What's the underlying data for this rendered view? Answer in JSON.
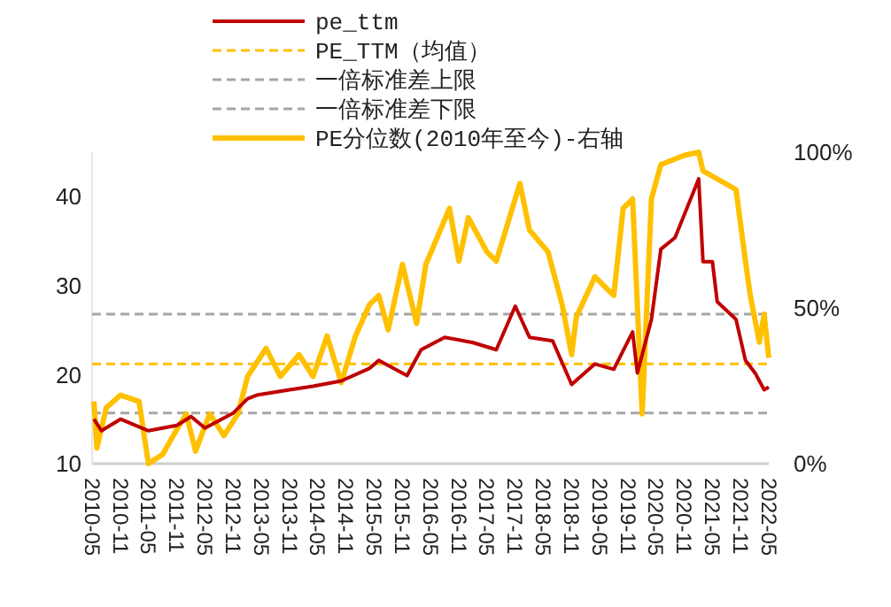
{
  "chart_data": {
    "type": "line",
    "legend": "top",
    "line_style": "solid",
    "marker": "none",
    "grid": false,
    "xlim": [
      "2010-05",
      "2022-05"
    ],
    "xticks": [
      "2010-05",
      "2010-11",
      "2011-05",
      "2011-11",
      "2012-05",
      "2012-11",
      "2013-05",
      "2013-11",
      "2014-05",
      "2014-11",
      "2015-05",
      "2015-11",
      "2016-05",
      "2016-11",
      "2017-05",
      "2017-11",
      "2018-05",
      "2018-11",
      "2019-05",
      "2019-11",
      "2020-05",
      "2020-11",
      "2021-05",
      "2021-11",
      "2022-05"
    ],
    "ylim": [
      10,
      45
    ],
    "yticks": [
      10,
      20,
      30,
      40
    ],
    "y2lim": [
      0,
      100
    ],
    "y2ticks": [
      {
        "value": 0,
        "label": "0%"
      },
      {
        "value": 50,
        "label": "50%"
      },
      {
        "value": 100,
        "label": "100%"
      }
    ],
    "ref_lines": [
      {
        "axis": "y",
        "value": 21.2,
        "label": "PE_TTM（均值）",
        "color": "#ffc000",
        "line_style": "dashed"
      },
      {
        "axis": "y",
        "value": 26.8,
        "label": "一倍标准差上限",
        "color": "#a6a6a6",
        "line_style": "dashed"
      },
      {
        "axis": "y",
        "value": 15.7,
        "label": "一倍标准差下限",
        "color": "#a6a6a6",
        "line_style": "dashed"
      }
    ],
    "series": [
      {
        "name": "pe_ttm",
        "color": "#c00000",
        "x": [
          "2010-05-13",
          "2010-07",
          "2010-11",
          "2011-05",
          "2011-11",
          "2012-02",
          "2012-05",
          "2012-11",
          "2013-02",
          "2013-04",
          "2013-11",
          "2014-04",
          "2014-10",
          "2015-04",
          "2015-06",
          "2015-12",
          "2016-03",
          "2016-08",
          "2017-02",
          "2017-07",
          "2017-11",
          "2018-02",
          "2018-07",
          "2018-11",
          "2019-04",
          "2019-08",
          "2019-12",
          "2020-01",
          "2020-04",
          "2020-06",
          "2020-09",
          "2021-02",
          "2021-03",
          "2021-05",
          "2021-06",
          "2021-10",
          "2021-12",
          "2022-02",
          "2022-04",
          "2022-05"
        ],
        "values": [
          15.0,
          13.7,
          15.0,
          13.7,
          14.3,
          15.3,
          14.0,
          15.7,
          17.3,
          17.7,
          18.3,
          18.7,
          19.3,
          20.7,
          21.6,
          19.9,
          22.8,
          24.2,
          23.6,
          22.8,
          27.7,
          24.2,
          23.8,
          18.9,
          21.2,
          20.6,
          24.8,
          20.2,
          26.2,
          34.1,
          35.4,
          42.0,
          32.7,
          32.7,
          28.2,
          26.2,
          21.6,
          20.2,
          18.3,
          18.6
        ]
      },
      {
        "name": "PE分位数(2010年至今)-右轴",
        "color": "#ffc000",
        "axis": "y2",
        "x": [
          "2010-05-13",
          "2010-06",
          "2010-08",
          "2010-11",
          "2011-03",
          "2011-05",
          "2011-08",
          "2011-11",
          "2012-01",
          "2012-03",
          "2012-06",
          "2012-09",
          "2012-12",
          "2013-02",
          "2013-06",
          "2013-09",
          "2014-01",
          "2014-04",
          "2014-07",
          "2014-10",
          "2015-01",
          "2015-04",
          "2015-06",
          "2015-08",
          "2015-11",
          "2016-02",
          "2016-04",
          "2016-09",
          "2016-11",
          "2017-01",
          "2017-05",
          "2017-07",
          "2017-12",
          "2018-02",
          "2018-06",
          "2018-09",
          "2018-11",
          "2018-12",
          "2019-04",
          "2019-08",
          "2019-10",
          "2019-12",
          "2020-02",
          "2020-04",
          "2020-06",
          "2020-11",
          "2021-02",
          "2021-03",
          "2021-10",
          "2021-12",
          "2022-01",
          "2022-03",
          "2022-04",
          "2022-05"
        ],
        "values": [
          20,
          5,
          18,
          22,
          20,
          0,
          3,
          11,
          16,
          4,
          16,
          9,
          16,
          28,
          37,
          28,
          35,
          28,
          41,
          26,
          41,
          51,
          54,
          43,
          64,
          45,
          64,
          82,
          65,
          79,
          68,
          65,
          90,
          75,
          68,
          51,
          35,
          47,
          60,
          54,
          82,
          85,
          16,
          85,
          96,
          99,
          100,
          94,
          88,
          65,
          54,
          39,
          48,
          34
        ]
      }
    ]
  }
}
